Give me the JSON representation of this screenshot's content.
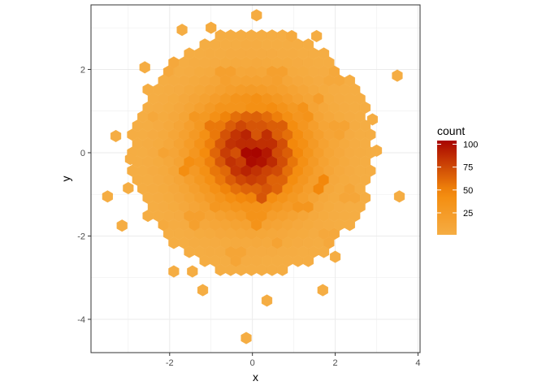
{
  "chart_data": {
    "type": "heatmap",
    "subtype": "hexbin",
    "title": "",
    "xlabel": "x",
    "ylabel": "y",
    "xlim": [
      -3.9,
      4.05
    ],
    "ylim": [
      -4.8,
      3.55
    ],
    "xticks": [
      -2,
      0,
      2,
      4
    ],
    "yticks": [
      -4,
      -2,
      0,
      2
    ],
    "xtick_labels": [
      "-2",
      "0",
      "2",
      "4"
    ],
    "ytick_labels": [
      "-4",
      "-2",
      "0",
      "2"
    ],
    "grid": true,
    "legend": {
      "title": "count",
      "placement": "right",
      "breaks": [
        25,
        50,
        75,
        100
      ],
      "break_labels": [
        "25",
        "50",
        "75",
        "100"
      ],
      "range": [
        1,
        104
      ]
    },
    "color_low": "#f5ad43",
    "color_mid": "#f48a0b",
    "color_high": "#a80500",
    "panel_border": "#333333",
    "grid_color": "#ebebeb",
    "bins": [
      {
        "x": 0.1,
        "y": 0.05,
        "count": 104
      },
      {
        "x": -0.15,
        "y": 0.2,
        "count": 88
      },
      {
        "x": 0.35,
        "y": 0.2,
        "count": 86
      },
      {
        "x": 0.1,
        "y": -0.4,
        "count": 85
      },
      {
        "x": -0.25,
        "y": -0.2,
        "count": 80
      },
      {
        "x": 0.35,
        "y": -0.4,
        "count": 78
      },
      {
        "x": 0.6,
        "y": 0.05,
        "count": 74
      },
      {
        "x": -0.4,
        "y": 0.05,
        "count": 72
      },
      {
        "x": 0.1,
        "y": 0.5,
        "count": 70
      },
      {
        "x": 0.6,
        "y": 0.6,
        "count": 66
      },
      {
        "x": 0.6,
        "y": -0.7,
        "count": 64
      },
      {
        "x": 0.25,
        "y": -1.0,
        "count": 70
      },
      {
        "x": -0.65,
        "y": -0.4,
        "count": 62
      },
      {
        "x": -0.9,
        "y": 0.6,
        "count": 55
      },
      {
        "x": 1.05,
        "y": 0.05,
        "count": 48
      },
      {
        "x": 1.7,
        "y": -0.7,
        "count": 48
      },
      {
        "x": -1.6,
        "y": -0.4,
        "count": 42
      },
      {
        "x": 0.1,
        "y": 1.15,
        "count": 40
      },
      {
        "x": -0.4,
        "y": 1.2,
        "count": 34
      },
      {
        "x": 1.3,
        "y": 0.9,
        "count": 36
      },
      {
        "x": 0.1,
        "y": -1.6,
        "count": 36
      },
      {
        "x": -1.4,
        "y": 0.9,
        "count": 30
      },
      {
        "x": 1.2,
        "y": -1.3,
        "count": 32
      },
      {
        "x": -0.9,
        "y": -1.35,
        "count": 30
      },
      {
        "x": 1.55,
        "y": 1.3,
        "count": 22
      },
      {
        "x": 0.6,
        "y": 1.8,
        "count": 18
      },
      {
        "x": -0.65,
        "y": 1.8,
        "count": 18
      },
      {
        "x": -1.4,
        "y": -1.6,
        "count": 18
      },
      {
        "x": 0.6,
        "y": -2.2,
        "count": 14
      },
      {
        "x": -0.4,
        "y": -2.5,
        "count": 12
      },
      {
        "x": -2.15,
        "y": 0.05,
        "count": 14
      },
      {
        "x": 2.05,
        "y": 0.6,
        "count": 14
      },
      {
        "x": 2.3,
        "y": -1.0,
        "count": 10
      },
      {
        "x": -2.4,
        "y": 0.9,
        "count": 8
      },
      {
        "x": 2.0,
        "y": 1.8,
        "count": 8
      },
      {
        "x": -2.0,
        "y": 2.1,
        "count": 7
      },
      {
        "x": 1.9,
        "y": -2.0,
        "count": 7
      },
      {
        "x": -2.2,
        "y": -1.8,
        "count": 5
      },
      {
        "x": 0.95,
        "y": 2.8,
        "count": 5
      },
      {
        "x": -1.0,
        "y": 3.0,
        "count": 4
      },
      {
        "x": -3.5,
        "y": -1.05,
        "count": 1
      },
      {
        "x": -3.3,
        "y": 0.4,
        "count": 1
      },
      {
        "x": -2.6,
        "y": 2.05,
        "count": 1
      },
      {
        "x": -1.7,
        "y": 2.95,
        "count": 1
      },
      {
        "x": 0.1,
        "y": 3.3,
        "count": 2
      },
      {
        "x": 1.55,
        "y": 2.8,
        "count": 1
      },
      {
        "x": 3.5,
        "y": 1.85,
        "count": 1
      },
      {
        "x": 3.55,
        "y": -1.05,
        "count": 1
      },
      {
        "x": 3.0,
        "y": 0.05,
        "count": 1
      },
      {
        "x": 2.0,
        "y": -2.5,
        "count": 1
      },
      {
        "x": 1.7,
        "y": -3.3,
        "count": 1
      },
      {
        "x": 0.35,
        "y": -3.55,
        "count": 1
      },
      {
        "x": -1.2,
        "y": -3.3,
        "count": 1
      },
      {
        "x": -1.9,
        "y": -2.85,
        "count": 1
      },
      {
        "x": -3.15,
        "y": -1.75,
        "count": 1
      },
      {
        "x": -1.45,
        "y": -2.85,
        "count": 1
      },
      {
        "x": -0.15,
        "y": -4.45,
        "count": 1
      },
      {
        "x": 2.6,
        "y": 1.25,
        "count": 1
      },
      {
        "x": 2.9,
        "y": 0.8,
        "count": 1
      },
      {
        "x": 2.8,
        "y": -0.6,
        "count": 1
      },
      {
        "x": -2.95,
        "y": -0.15,
        "count": 1
      },
      {
        "x": -3.0,
        "y": -0.85,
        "count": 1
      }
    ]
  }
}
